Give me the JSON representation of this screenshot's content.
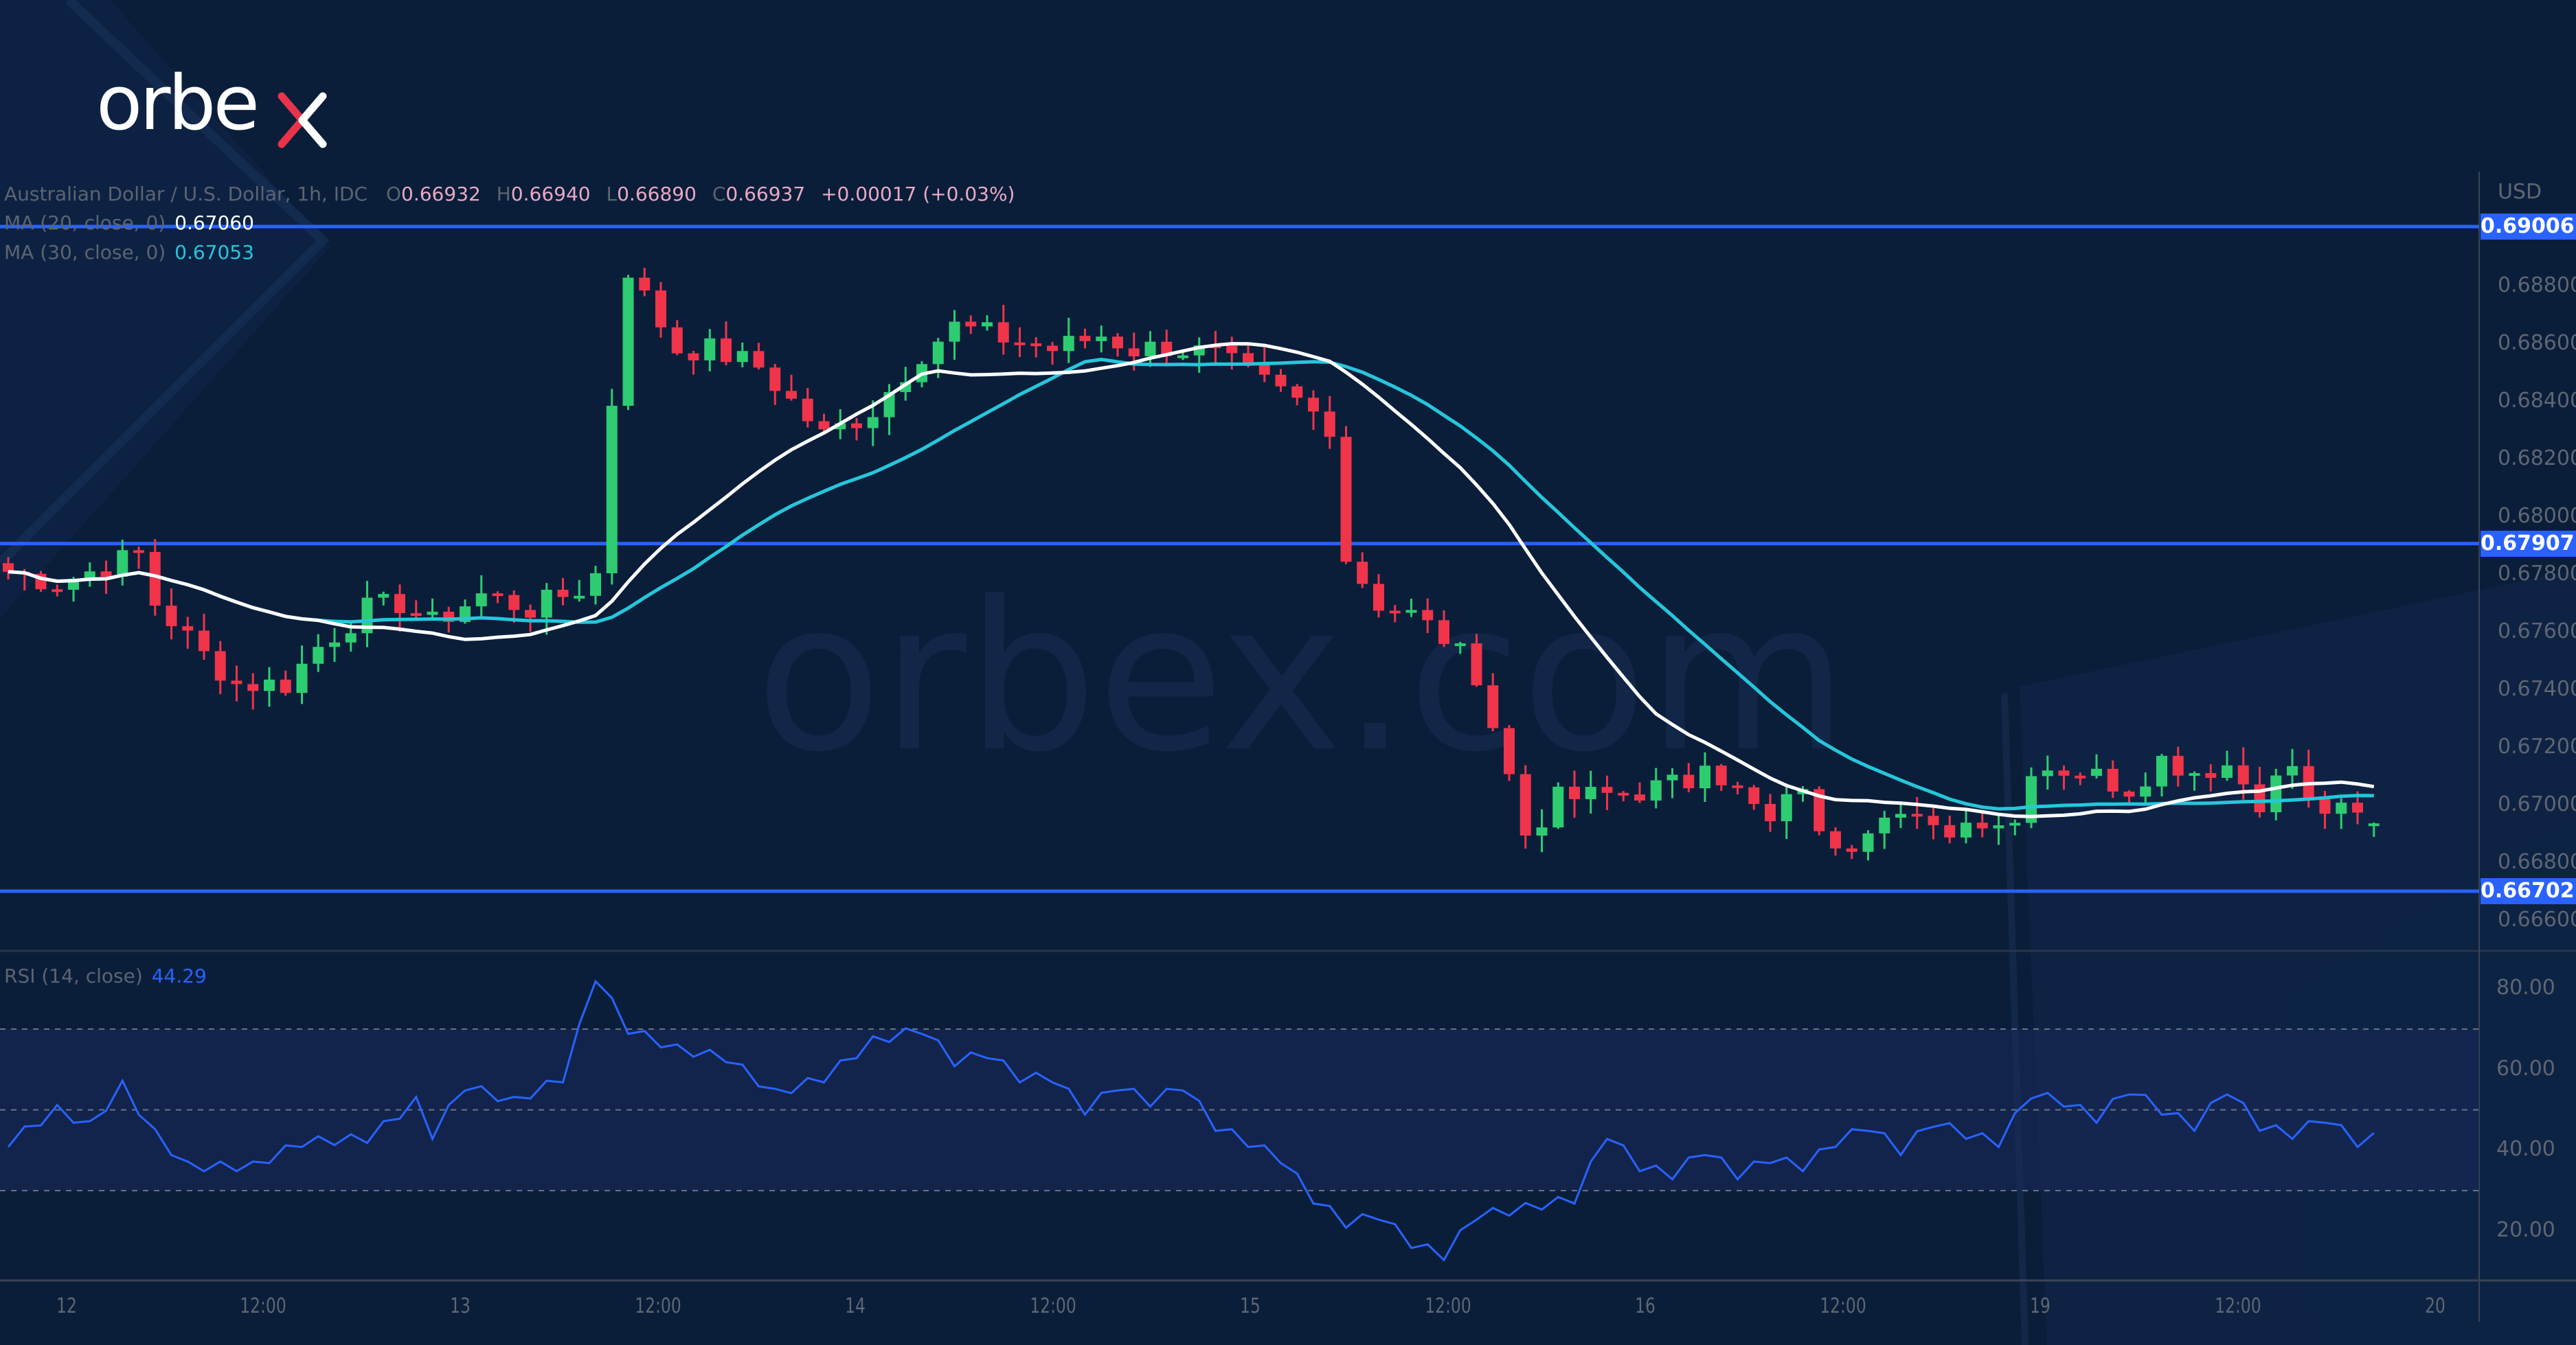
{
  "brand": {
    "logo_text": "orbex",
    "watermark_text": "orbex.com",
    "logo_accent_color": "#e8334a"
  },
  "symbol_legend": {
    "title": "Australian Dollar / U.S. Dollar, 1h, IDC",
    "open_label": "O",
    "open": "0.66932",
    "high_label": "H",
    "high": "0.66940",
    "low_label": "L",
    "low": "0.66890",
    "close_label": "C",
    "close": "0.66937",
    "change": "+0.00017 (+0.03%)"
  },
  "indicators": {
    "ma20": {
      "label": "MA (20, close, 0)",
      "value": "0.67060",
      "color": "#ffffff"
    },
    "ma30": {
      "label": "MA (30, close, 0)",
      "value": "0.67053",
      "color": "#26c6da"
    },
    "rsi": {
      "label": "RSI (14, close)",
      "value": "44.29",
      "color": "#2962ff"
    }
  },
  "price_axis": {
    "currency": "USD",
    "ticks": [
      "0.68800",
      "0.68600",
      "0.68400",
      "0.68200",
      "0.68000",
      "0.67800",
      "0.67600",
      "0.67400",
      "0.67200",
      "0.67000",
      "0.66800",
      "0.66600"
    ],
    "horizontal_levels": [
      "0.69006",
      "0.67907",
      "0.66702"
    ]
  },
  "rsi_axis": {
    "ticks": [
      "80.00",
      "60.00",
      "40.00",
      "20.00"
    ]
  },
  "time_axis": {
    "labels": [
      "12",
      "12:00",
      "13",
      "12:00",
      "14",
      "12:00",
      "15",
      "12:00",
      "16",
      "12:00",
      "19",
      "12:00",
      "20"
    ]
  },
  "colors": {
    "up": "#2ecc71",
    "down": "#f0344a",
    "level_line": "#2962ff",
    "background": "#0a1e3a"
  },
  "chart_data": [
    {
      "type": "candlestick",
      "title": "Australian Dollar / U.S. Dollar, 1h, IDC",
      "xlabel": "",
      "ylabel": "USD",
      "x_tick_labels": [
        "12",
        "12:00",
        "13",
        "12:00",
        "14",
        "12:00",
        "15",
        "12:00",
        "16",
        "12:00",
        "19",
        "12:00",
        "20"
      ],
      "ylim": [
        0.6652,
        0.691
      ],
      "horizontal_lines": [
        0.69006,
        0.67907,
        0.66702
      ],
      "series": [
        {
          "name": "MA (20, close, 0)",
          "last": 0.6706
        },
        {
          "name": "MA (30, close, 0)",
          "last": 0.67053
        }
      ],
      "last_bar": {
        "open": 0.66932,
        "high": 0.6694,
        "low": 0.6689,
        "close": 0.66937,
        "change": 0.00017,
        "change_pct": 0.03
      },
      "approx_path": {
        "x": [
          "12 00:00",
          "12 12:00",
          "13 00:00",
          "13 09:00",
          "13 12:00",
          "14 00:00",
          "14 12:00",
          "15 00:00",
          "15 12:00",
          "16 00:00",
          "16 12:00",
          "19 00:00",
          "19 12:00",
          "20 00:00"
        ],
        "close": [
          0.678,
          0.6742,
          0.6765,
          0.688,
          0.685,
          0.684,
          0.686,
          0.684,
          0.669,
          0.672,
          0.669,
          0.67,
          0.6712,
          0.6694
        ]
      }
    },
    {
      "type": "line",
      "title": "RSI (14, close)",
      "ylim": [
        10,
        90
      ],
      "bands": [
        30,
        50,
        70
      ],
      "last": 44.29,
      "approx_path": {
        "x": [
          "12 00:00",
          "12 12:00",
          "13 00:00",
          "13 09:00",
          "13 12:00",
          "14 12:00",
          "15 00:00",
          "15 12:00",
          "16 00:00",
          "16 12:00",
          "19 00:00",
          "19 12:00",
          "20 00:00"
        ],
        "values": [
          42,
          36,
          55,
          82,
          66,
          68,
          54,
          14,
          27,
          38,
          55,
          52,
          44.29
        ]
      }
    }
  ]
}
